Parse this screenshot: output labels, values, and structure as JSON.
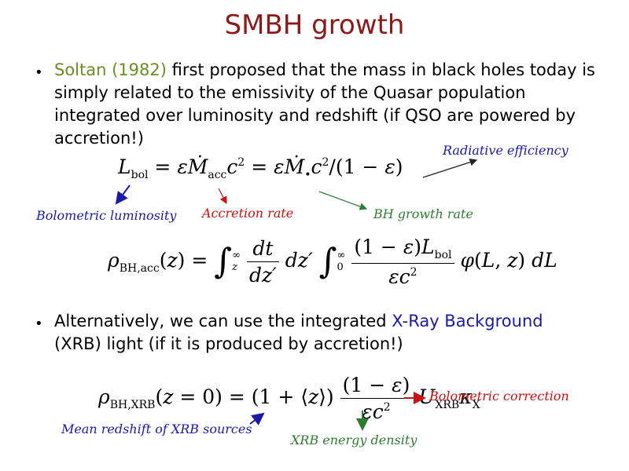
{
  "slide": {
    "title": "SMBH growth",
    "bullet1": {
      "citation": "Soltan (1982)",
      "line1_rest": " first proposed that the mass in black holes today is",
      "line2": "simply related to the emissivity of the Quasar population",
      "line3": "integrated over luminosity and redshift (if QSO are powered by",
      "line4": "accretion!)"
    },
    "bullet2": {
      "line1_pre": "Alternatively, we can use the integrated ",
      "highlight": "X-Ray Background",
      "line2": "(XRB) light (if it is produced by accretion!)"
    },
    "annotations": {
      "radiative_efficiency": "Radiative efficiency",
      "bolometric_luminosity": "Bolometric luminosity",
      "accretion_rate": "Accretion rate",
      "bh_growth_rate": "BH growth rate",
      "bolometric_correction": "Bolometric correction",
      "mean_redshift": "Mean redshift of XRB sources",
      "xrb_energy_density": "XRB energy density"
    },
    "colors": {
      "title": "#8b1a1a",
      "citation": "#6b8e23",
      "highlight": "#1a1aa6",
      "blue_annotation": "#1a1aa6",
      "red_annotation": "#cc1111",
      "green_annotation": "#2e7d32"
    }
  }
}
